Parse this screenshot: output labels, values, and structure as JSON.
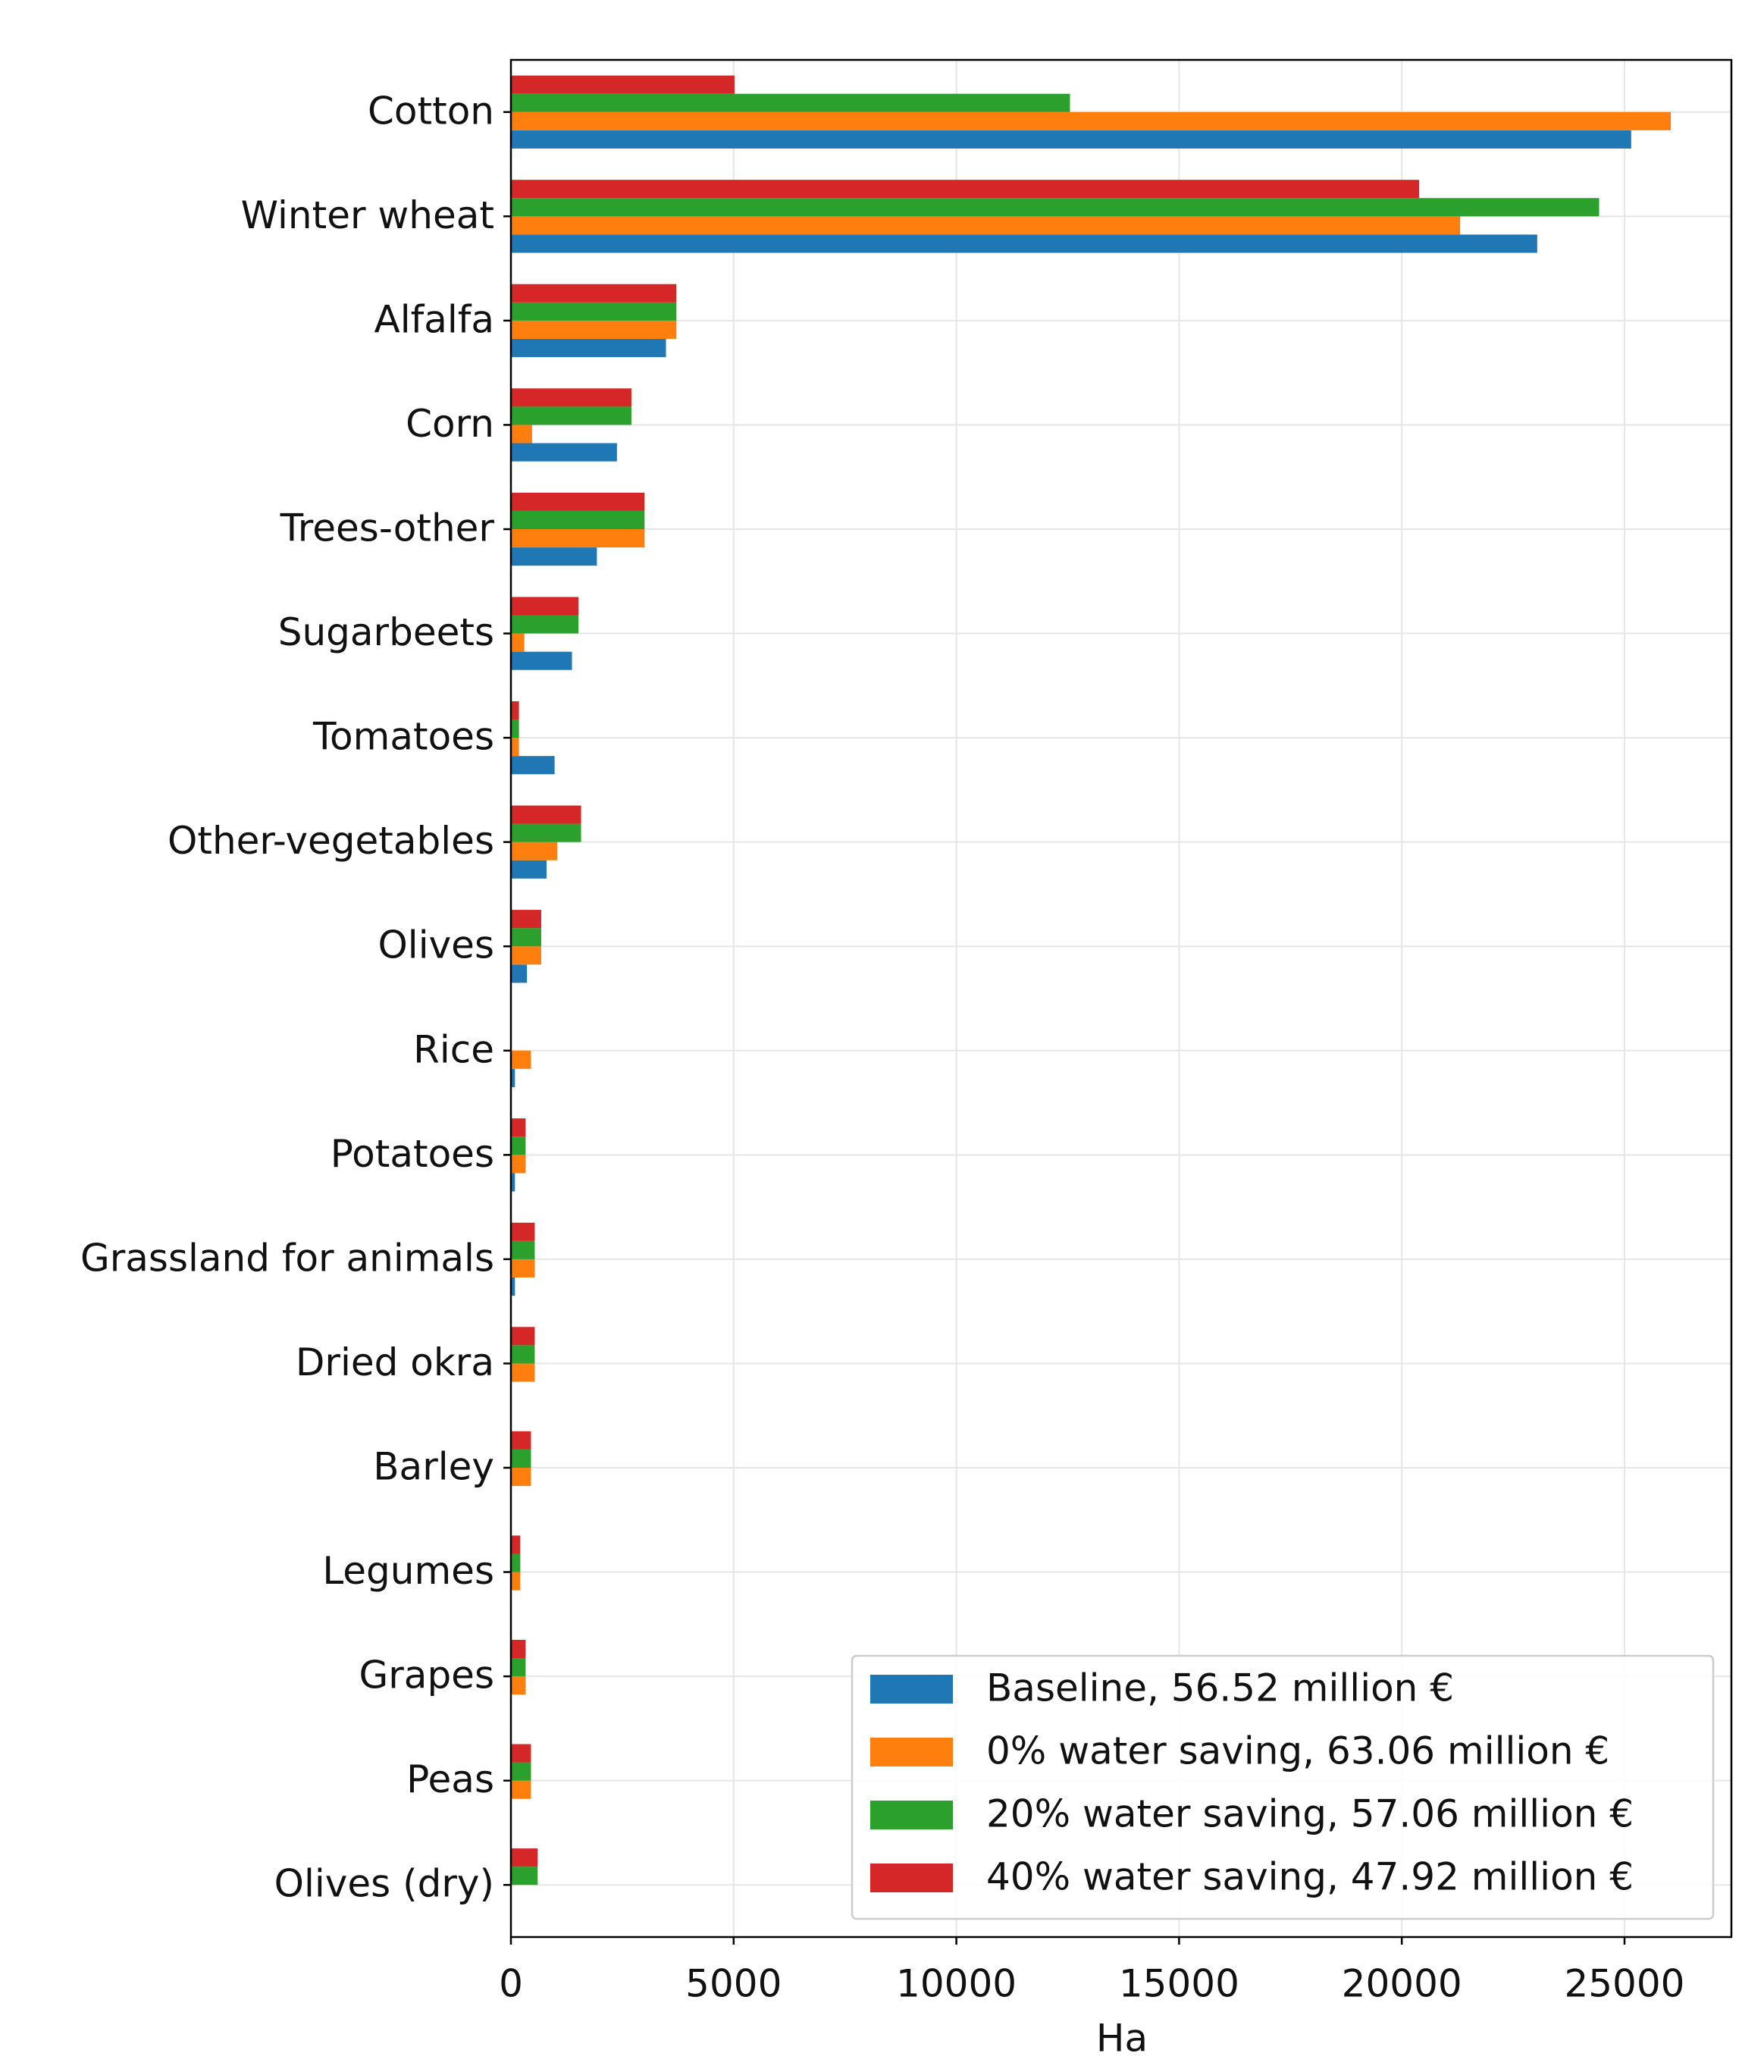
{
  "chart_data": {
    "type": "barh",
    "xlabel": "Ha",
    "categories": [
      "Cotton",
      "Winter wheat",
      "Alfalfa",
      "Corn",
      "Trees-other",
      "Sugarbeets",
      "Tomatoes",
      "Other-vegetables",
      "Olives",
      "Rice",
      "Potatoes",
      "Grassland for animals",
      "Dried okra",
      "Barley",
      "Legumes",
      "Grapes",
      "Peas",
      "Olives (dry)"
    ],
    "series": [
      {
        "name": "Baseline, 56.52 million €",
        "color": "#1f77b4",
        "values": [
          25150,
          23040,
          3480,
          2380,
          1930,
          1370,
          980,
          800,
          360,
          90,
          90,
          90,
          0,
          0,
          0,
          0,
          0,
          0
        ]
      },
      {
        "name": "0%  water saving, 63.06 million €",
        "color": "#ff7f0e",
        "values": [
          26040,
          21310,
          3715,
          475,
          3000,
          300,
          180,
          1040,
          680,
          450,
          330,
          535,
          535,
          450,
          210,
          330,
          450,
          0
        ]
      },
      {
        "name": "20% water saving, 57.06 million €",
        "color": "#2ca02c",
        "values": [
          12550,
          24430,
          3715,
          2705,
          3000,
          1516,
          180,
          1575,
          680,
          0,
          330,
          535,
          535,
          450,
          210,
          330,
          450,
          600
        ]
      },
      {
        "name": "40% water saving, 47.92 million €",
        "color": "#d62728",
        "values": [
          5020,
          20390,
          3715,
          2705,
          3000,
          1516,
          180,
          1575,
          680,
          0,
          330,
          535,
          535,
          450,
          210,
          330,
          450,
          600
        ]
      }
    ],
    "xlim": [
      0,
      27400
    ],
    "xticks": [
      0,
      5000,
      10000,
      15000,
      20000,
      25000
    ],
    "grid": true,
    "legend": "lower right"
  }
}
